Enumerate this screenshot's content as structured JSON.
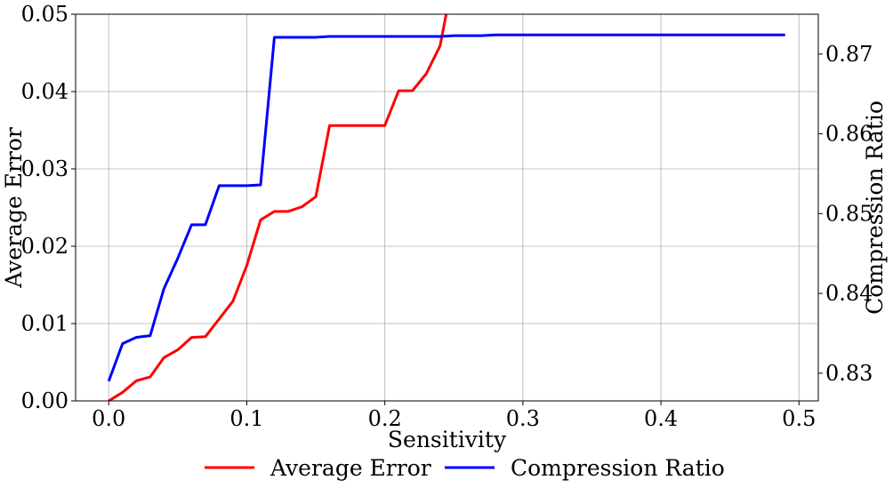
{
  "chart_data": {
    "type": "line",
    "xlabel": "Sensitivity",
    "ylabel_left": "Average Error",
    "ylabel_right": "Compression Ratio",
    "xlim": [
      -0.024,
      0.514
    ],
    "ylim_left": [
      0,
      0.05
    ],
    "ylim_right": [
      0.82653,
      0.87499
    ],
    "x_ticks": [
      0.0,
      0.1,
      0.2,
      0.3,
      0.4,
      0.5
    ],
    "x_tick_labels": [
      "0.0",
      "0.1",
      "0.2",
      "0.3",
      "0.4",
      "0.5"
    ],
    "y_left_ticks": [
      0.0,
      0.01,
      0.02,
      0.03,
      0.04,
      0.05
    ],
    "y_left_tick_labels": [
      "0.00",
      "0.01",
      "0.02",
      "0.03",
      "0.04",
      "0.05"
    ],
    "y_right_ticks": [
      0.83,
      0.84,
      0.85,
      0.86,
      0.87
    ],
    "y_right_tick_labels": [
      "0.83",
      "0.84",
      "0.85",
      "0.86",
      "0.87"
    ],
    "grid": true,
    "legend_position": "bottom-center",
    "colors": {
      "average_error": "#ff0000",
      "compression_ratio": "#0000ff"
    },
    "series": [
      {
        "name": "Average Error",
        "axis": "left",
        "color": "#ff0000",
        "x": [
          0.0,
          0.01,
          0.02,
          0.03,
          0.04,
          0.05,
          0.06,
          0.07,
          0.08,
          0.09,
          0.1,
          0.11,
          0.12,
          0.13,
          0.14,
          0.15,
          0.16,
          0.17,
          0.18,
          0.19,
          0.2,
          0.21,
          0.22,
          0.23,
          0.24,
          0.245
        ],
        "values": [
          0.0,
          0.0011,
          0.0026,
          0.0031,
          0.0056,
          0.0066,
          0.0082,
          0.0083,
          0.0106,
          0.0129,
          0.0175,
          0.0234,
          0.0245,
          0.0245,
          0.0251,
          0.0264,
          0.0356,
          0.0356,
          0.0356,
          0.0356,
          0.0356,
          0.0401,
          0.0401,
          0.0423,
          0.0459,
          0.0505
        ]
      },
      {
        "name": "Compression Ratio",
        "axis": "right",
        "color": "#0000ff",
        "x": [
          0.0,
          0.01,
          0.02,
          0.03,
          0.04,
          0.05,
          0.06,
          0.07,
          0.08,
          0.09,
          0.1,
          0.11,
          0.12,
          0.13,
          0.14,
          0.15,
          0.16,
          0.17,
          0.18,
          0.19,
          0.2,
          0.21,
          0.22,
          0.23,
          0.24,
          0.25,
          0.26,
          0.27,
          0.28,
          0.29,
          0.3,
          0.35,
          0.4,
          0.45,
          0.49
        ],
        "values": [
          0.829,
          0.8337,
          0.8345,
          0.8347,
          0.8406,
          0.8444,
          0.8486,
          0.8486,
          0.8535,
          0.8535,
          0.8535,
          0.8536,
          0.8721,
          0.8721,
          0.8721,
          0.8721,
          0.8722,
          0.8722,
          0.8722,
          0.8722,
          0.8722,
          0.8722,
          0.8722,
          0.8722,
          0.8722,
          0.8723,
          0.8723,
          0.8723,
          0.8724,
          0.8724,
          0.8724,
          0.8724,
          0.8724,
          0.8724,
          0.8724
        ]
      }
    ]
  }
}
